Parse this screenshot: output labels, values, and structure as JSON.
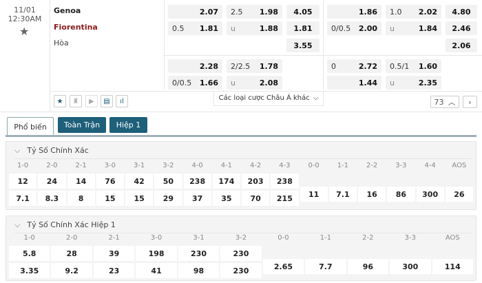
{
  "match": {
    "date": "11/01",
    "time": "12:30AM",
    "home": "Genoa",
    "away": "Fiorentina",
    "draw": "Hòa",
    "home_color": "#8b1a1a"
  },
  "full_time": {
    "row1": {
      "hdp_h": "",
      "hdp_v": "2.07",
      "ou_h": "2.5",
      "ou_v": "1.98",
      "x12": "4.05"
    },
    "row2": {
      "hdp_h": "0.5",
      "hdp_v": "1.81",
      "ou_h": "u",
      "ou_v": "1.88",
      "x12": "1.81"
    },
    "row3": {
      "x12": "3.55"
    },
    "alt1": {
      "hdp_h": "",
      "hdp_v": "2.28",
      "ou_h": "2/2.5",
      "ou_v": "1.78"
    },
    "alt2": {
      "hdp_h": "0/0.5",
      "hdp_v": "1.66",
      "ou_h": "u",
      "ou_v": "2.08"
    }
  },
  "first_half": {
    "row1": {
      "hdp_h": "",
      "hdp_v": "1.86",
      "ou_h": "1.0",
      "ou_v": "2.02",
      "x12": "4.80"
    },
    "row2": {
      "hdp_h": "0/0.5",
      "hdp_v": "2.00",
      "ou_h": "u",
      "ou_v": "1.84",
      "x12": "2.46"
    },
    "row3": {
      "x12": "2.06"
    },
    "alt1": {
      "hdp_h": "0",
      "hdp_v": "2.72",
      "ou_h": "0.5/1",
      "ou_v": "1.60"
    },
    "alt2": {
      "hdp_h": "",
      "hdp_v": "1.44",
      "ou_h": "u",
      "ou_v": "2.35"
    }
  },
  "toolbar": {
    "icons": [
      "star-icon",
      "jersey-icon",
      "play-icon",
      "scoreboard-icon",
      "stats-icon"
    ],
    "other_bets": "Các loại cược Châu Á khác",
    "more_count": "73"
  },
  "tabs": [
    {
      "label": "Phổ biến",
      "active": true
    },
    {
      "label": "Toàn Trận",
      "active": false
    },
    {
      "label": "Hiệp 1",
      "active": false
    }
  ],
  "correct_score": {
    "title": "Tỷ Số Chính Xác",
    "columns": [
      {
        "label": "1-0",
        "values": [
          "12",
          "7.1"
        ]
      },
      {
        "label": "2-0",
        "values": [
          "24",
          "8.3"
        ]
      },
      {
        "label": "2-1",
        "values": [
          "14",
          "8"
        ]
      },
      {
        "label": "3-0",
        "values": [
          "76",
          "15"
        ]
      },
      {
        "label": "3-1",
        "values": [
          "42",
          "15"
        ]
      },
      {
        "label": "3-2",
        "values": [
          "50",
          "29"
        ]
      },
      {
        "label": "4-0",
        "values": [
          "238",
          "37"
        ]
      },
      {
        "label": "4-1",
        "values": [
          "174",
          "35"
        ]
      },
      {
        "label": "4-2",
        "values": [
          "203",
          "70"
        ]
      },
      {
        "label": "4-3",
        "values": [
          "238",
          "215"
        ]
      },
      {
        "label": "0-0",
        "values": [
          "11"
        ]
      },
      {
        "label": "1-1",
        "values": [
          "7.1"
        ]
      },
      {
        "label": "2-2",
        "values": [
          "16"
        ]
      },
      {
        "label": "3-3",
        "values": [
          "86"
        ]
      },
      {
        "label": "4-4",
        "values": [
          "300"
        ]
      },
      {
        "label": "AOS",
        "values": [
          "26"
        ]
      }
    ]
  },
  "correct_score_h1": {
    "title": "Tỷ Số Chính Xác Hiệp 1",
    "columns": [
      {
        "label": "1-0",
        "values": [
          "5.8",
          "3.35"
        ]
      },
      {
        "label": "2-0",
        "values": [
          "28",
          "9.2"
        ]
      },
      {
        "label": "2-1",
        "values": [
          "39",
          "23"
        ]
      },
      {
        "label": "3-0",
        "values": [
          "198",
          "41"
        ]
      },
      {
        "label": "3-1",
        "values": [
          "230",
          "98"
        ]
      },
      {
        "label": "3-2",
        "values": [
          "230",
          "230"
        ]
      },
      {
        "label": "0-0",
        "values": [
          "2.65"
        ]
      },
      {
        "label": "1-1",
        "values": [
          "7.7"
        ]
      },
      {
        "label": "2-2",
        "values": [
          "96"
        ]
      },
      {
        "label": "3-3",
        "values": [
          "300"
        ]
      },
      {
        "label": "AOS",
        "values": [
          "114"
        ]
      }
    ]
  }
}
